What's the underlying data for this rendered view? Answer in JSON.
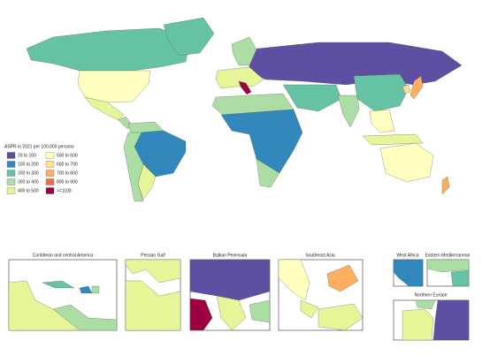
{
  "legend": {
    "title": "ASPR in 2021 per 100,000 persons",
    "items": [
      {
        "label": "20 to 100",
        "color": "#5e4fa2"
      },
      {
        "label": "100 to 200",
        "color": "#3288bd"
      },
      {
        "label": "200 to 300",
        "color": "#66c2a5"
      },
      {
        "label": "300 to 400",
        "color": "#abdda4"
      },
      {
        "label": "400 to 500",
        "color": "#e6f598"
      },
      {
        "label": "500 to 600",
        "color": "#ffffbf"
      },
      {
        "label": "600 to 700",
        "color": "#fee08b"
      },
      {
        "label": "700 to 800",
        "color": "#fdae61"
      },
      {
        "label": "800 to 900",
        "color": "#f46d43"
      },
      {
        "label": ">=1100",
        "color": "#9e0142"
      }
    ]
  },
  "insets": [
    {
      "title": "Caribbean and central America"
    },
    {
      "title": "Persian Gulf"
    },
    {
      "title": "Balkan Peninsula"
    },
    {
      "title": "Southeast Asia"
    },
    {
      "title": "West Africa"
    },
    {
      "title": "Eastern Mediterranean"
    },
    {
      "title": "Northern Europe"
    }
  ]
}
